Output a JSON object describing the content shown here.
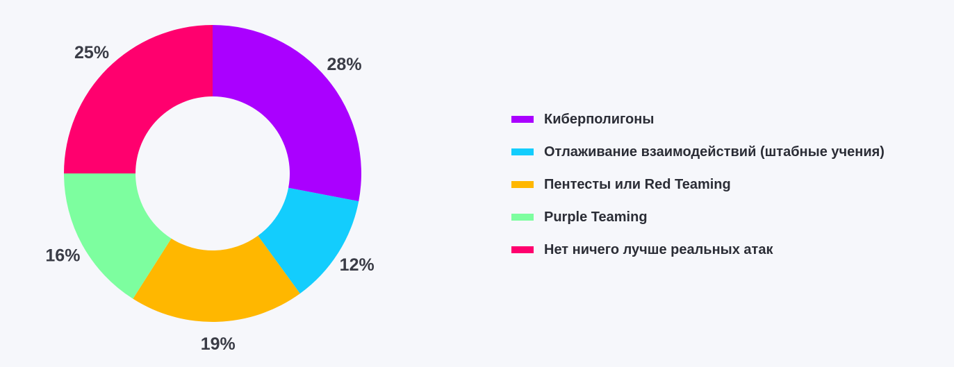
{
  "chart_data": {
    "type": "pie",
    "variant": "donut",
    "title": "",
    "legend_position": "right",
    "slices": [
      {
        "name": "Киберполигоны",
        "value": 28,
        "label": "28%",
        "color": "#aa00ff"
      },
      {
        "name": "Отлаживание взаимодействий (штабные учения)",
        "value": 12,
        "label": "12%",
        "color": "#13cdfd"
      },
      {
        "name": "Пентесты или Red Teaming",
        "value": 19,
        "label": "19%",
        "color": "#ffb700"
      },
      {
        "name": "Purple Teaming",
        "value": 16,
        "label": "16%",
        "color": "#7dfe9f"
      },
      {
        "name": "Нет ничего лучше реальных атак",
        "value": 25,
        "label": "25%",
        "color": "#ff006e"
      }
    ]
  }
}
